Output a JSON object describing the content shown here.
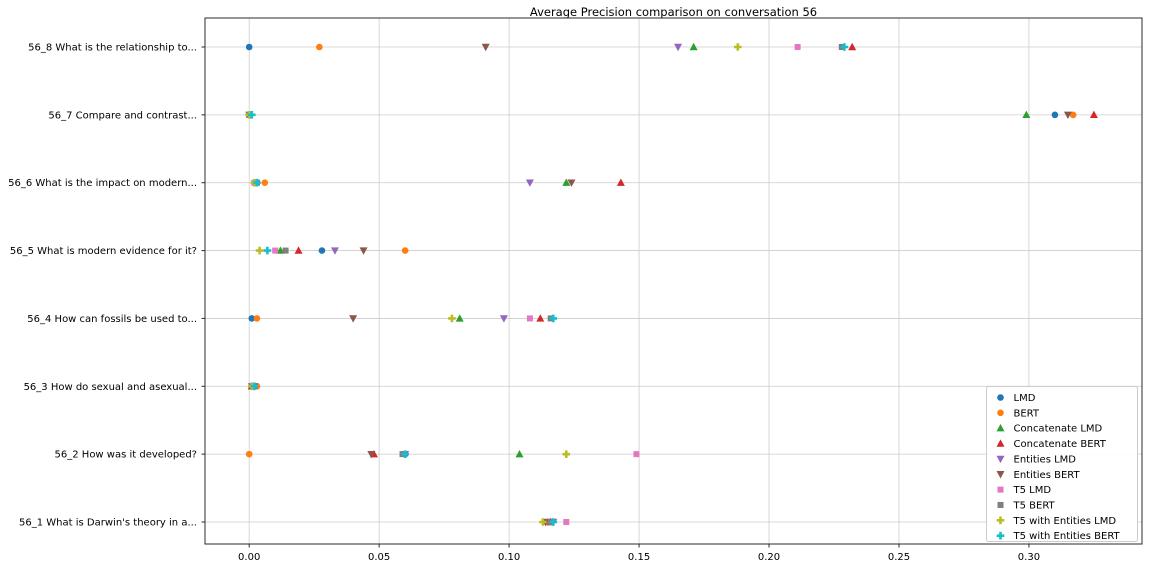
{
  "chart_data": {
    "type": "scatter",
    "title": "Average Precision comparison on conversation 56",
    "xlabel": "",
    "ylabel": "",
    "grid": true,
    "legend_position": "lower right",
    "xlim": [
      -0.017,
      0.3435
    ],
    "xticks": [
      0.0,
      0.05,
      0.1,
      0.15,
      0.2,
      0.25,
      0.3
    ],
    "categories_top_to_bottom": [
      "56_8 What is the relationship to...",
      "56_7 Compare and contrast...",
      "56_6 What is the impact on modern...",
      "56_5 What is modern evidence for it?",
      "56_4 How can fossils be used to...",
      "56_3 How do sexual and asexual...",
      "56_2 How was it developed?",
      "56_1 What is Darwin's theory in a..."
    ],
    "series": [
      {
        "name": "LMD",
        "color": "#1f77b4",
        "marker": "circle",
        "values": [
          0.0,
          0.31,
          0.002,
          0.028,
          0.001,
          0.001,
          0.06,
          0.115
        ]
      },
      {
        "name": "BERT",
        "color": "#ff7f0e",
        "marker": "circle",
        "values": [
          0.027,
          0.317,
          0.006,
          0.06,
          0.003,
          0.003,
          0.0,
          0.115
        ]
      },
      {
        "name": "Concatenate LMD",
        "color": "#2ca02c",
        "marker": "triangle-up",
        "values": [
          0.171,
          0.299,
          0.122,
          0.012,
          0.081,
          0.001,
          0.104,
          0.116
        ]
      },
      {
        "name": "Concatenate BERT",
        "color": "#d62728",
        "marker": "triangle-up",
        "values": [
          0.232,
          0.325,
          0.143,
          0.019,
          0.112,
          0.001,
          0.048,
          0.116
        ]
      },
      {
        "name": "Entities LMD",
        "color": "#9467bd",
        "marker": "triangle-down",
        "values": [
          0.165,
          0.0,
          0.108,
          0.033,
          0.098,
          0.001,
          0.06,
          0.117
        ]
      },
      {
        "name": "Entities BERT",
        "color": "#8c564b",
        "marker": "triangle-down",
        "values": [
          0.091,
          0.315,
          0.124,
          0.044,
          0.04,
          0.002,
          0.047,
          0.114
        ]
      },
      {
        "name": "T5 LMD",
        "color": "#e377c2",
        "marker": "square",
        "values": [
          0.211,
          0.0,
          0.002,
          0.01,
          0.108,
          0.002,
          0.149,
          0.122
        ]
      },
      {
        "name": "T5 BERT",
        "color": "#7f7f7f",
        "marker": "square",
        "values": [
          0.228,
          0.0,
          0.003,
          0.014,
          0.116,
          0.002,
          0.059,
          0.116
        ]
      },
      {
        "name": "T5 with Entities LMD",
        "color": "#bcbd22",
        "marker": "plus",
        "values": [
          0.188,
          0.0,
          0.002,
          0.004,
          0.078,
          0.001,
          0.122,
          0.113
        ]
      },
      {
        "name": "T5 with Entities BERT",
        "color": "#17becf",
        "marker": "plus",
        "values": [
          0.229,
          0.001,
          0.003,
          0.007,
          0.117,
          0.002,
          0.06,
          0.117
        ]
      }
    ]
  }
}
